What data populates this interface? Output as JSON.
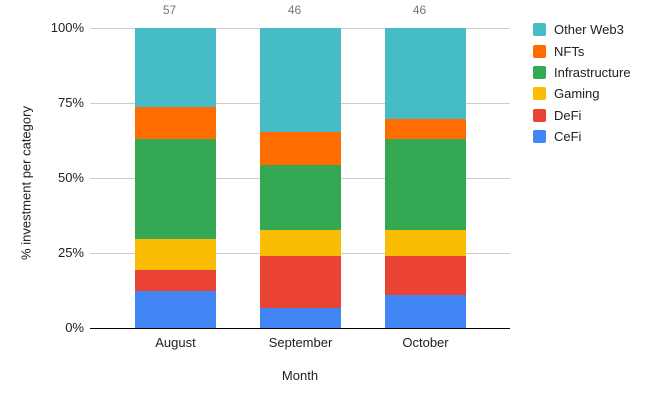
{
  "chart_data": {
    "type": "bar",
    "variant": "stacked-100-percent",
    "title": "",
    "xlabel": "Month",
    "ylabel": "% investment per category",
    "categories": [
      "August",
      "September",
      "October"
    ],
    "bar_totals": [
      57,
      46,
      46
    ],
    "bar_total_labels": [
      "57",
      "46",
      "46"
    ],
    "series": [
      {
        "name": "CeFi",
        "color": "#4285F4",
        "values": [
          7,
          3,
          5
        ]
      },
      {
        "name": "DeFi",
        "color": "#EA4335",
        "values": [
          4,
          8,
          6
        ]
      },
      {
        "name": "Gaming",
        "color": "#FBBC04",
        "values": [
          6,
          4,
          4
        ]
      },
      {
        "name": "Infrastructure",
        "color": "#34A853",
        "values": [
          19,
          10,
          14
        ]
      },
      {
        "name": "NFTs",
        "color": "#FF6D01",
        "values": [
          6,
          5,
          3
        ]
      },
      {
        "name": "Other Web3",
        "color": "#46BDC6",
        "values": [
          15,
          16,
          14
        ]
      }
    ],
    "y_ticks": [
      "0%",
      "25%",
      "50%",
      "75%",
      "100%"
    ],
    "ylim": [
      0,
      100
    ],
    "grid": true,
    "legend_position": "right",
    "legend_order": [
      "Other Web3",
      "NFTs",
      "Infrastructure",
      "Gaming",
      "DeFi",
      "CeFi"
    ]
  },
  "colors": {
    "background": "#ffffff",
    "gridline": "#cccccc",
    "axis_line": "#000000",
    "tick_label": "#202124",
    "axis_title": "#202124",
    "annotation": "#757575",
    "legend_label": "#202124"
  }
}
